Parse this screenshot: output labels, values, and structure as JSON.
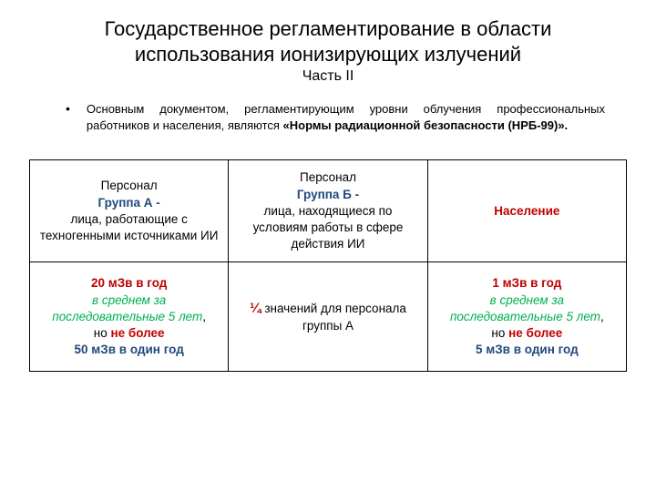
{
  "title": "Государственное  регламентирование  в  области использования  ионизирующих  излучений",
  "subtitle": "Часть II",
  "bullet": {
    "text_plain": "Основным  документом,  регламентирующим  уровни  облучения  профессиональных работников  и  населения,  являются  ",
    "text_bold": "«Нормы  радиационной  безопасности  (НРБ-99)»."
  },
  "table": {
    "border_color": "#000000",
    "colors": {
      "red": "#c00000",
      "blue": "#1f497d",
      "green": "#00b050",
      "black": "#000000"
    },
    "fontsize": 13.5,
    "header": {
      "colA": {
        "line1": "Персонал",
        "line2": "Группа  А  -",
        "line3": "лица, работающие  с техногенными источниками  ИИ"
      },
      "colB": {
        "line1": "Персонал",
        "line2": "Группа Б -",
        "line3": "лица, находящиеся по условиям  работы  в  сфере действия  ИИ"
      },
      "colC": {
        "line1": "Население"
      }
    },
    "body": {
      "colA": {
        "dose_main": "20 мЗв в  год",
        "avg1": "в  среднем  за",
        "avg2": "последовательные 5 лет",
        "comma": ",",
        "but": "но  ",
        "notmore": "не  более",
        "dose_max": "50 мЗв",
        "max_suffix": " в один год"
      },
      "colB": {
        "frac": "¼",
        "rest": "   значений  для персонала  группы А"
      },
      "colC": {
        "dose_main": "1 мЗв в  год",
        "avg1": "в  среднем  за",
        "avg2": "последовательные 5 лет",
        "comma": ",",
        "but": "но  ",
        "notmore": "не  более",
        "dose_max": "5 мЗв",
        "max_suffix": " в один год"
      }
    }
  }
}
